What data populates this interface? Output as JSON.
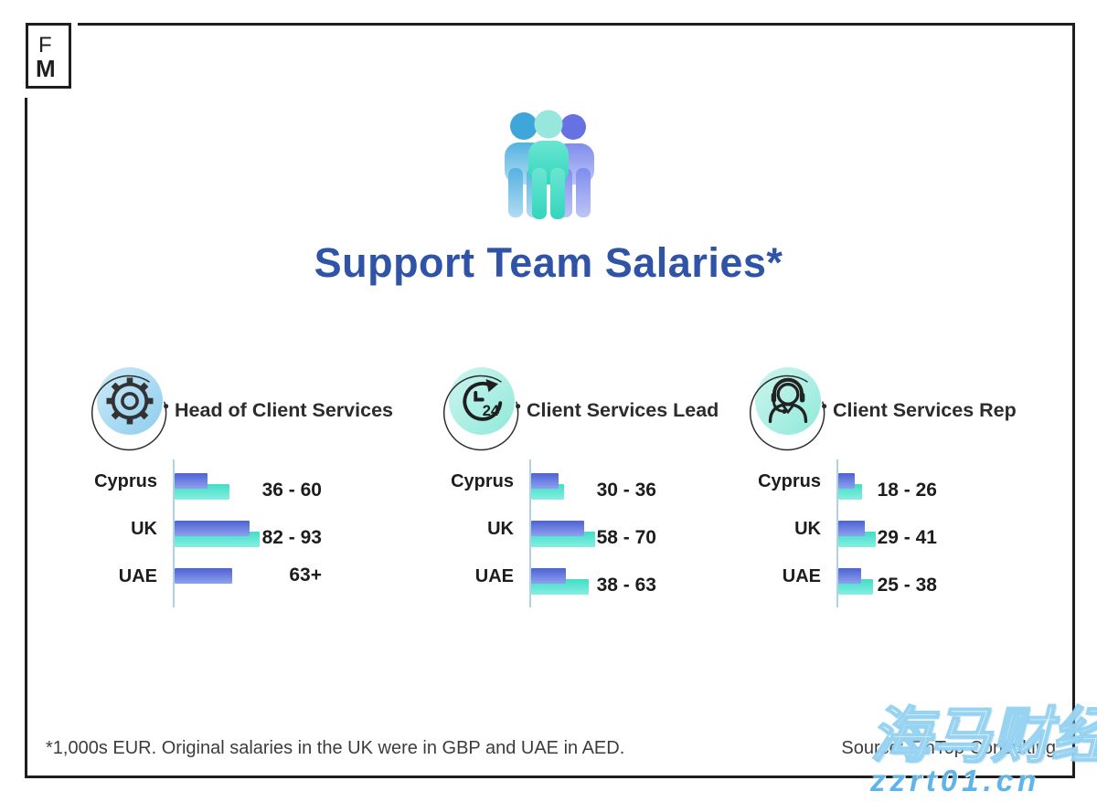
{
  "logo": {
    "letter_top": "F",
    "letter_bottom": "M"
  },
  "header": {
    "title": "Support Team Salaries*"
  },
  "columns": [
    {
      "heading": "Head of Client Services",
      "icon": "gear",
      "rows": [
        {
          "country": "Cyprus",
          "low": 36,
          "high": 60,
          "label": "36 - 60"
        },
        {
          "country": "UK",
          "low": 82,
          "high": 93,
          "label": "82 - 93"
        },
        {
          "country": "UAE",
          "low": 63,
          "high": null,
          "label": "63+"
        }
      ]
    },
    {
      "heading": "Client Services Lead",
      "icon": "clock-24",
      "rows": [
        {
          "country": "Cyprus",
          "low": 30,
          "high": 36,
          "label": "30 - 36"
        },
        {
          "country": "UK",
          "low": 58,
          "high": 70,
          "label": "58 - 70"
        },
        {
          "country": "UAE",
          "low": 38,
          "high": 63,
          "label": "38 - 63"
        }
      ]
    },
    {
      "heading": "Client Services Rep",
      "icon": "support-agent",
      "rows": [
        {
          "country": "Cyprus",
          "low": 18,
          "high": 26,
          "label": "18 - 26"
        },
        {
          "country": "UK",
          "low": 29,
          "high": 41,
          "label": "29 - 41"
        },
        {
          "country": "UAE",
          "low": 25,
          "high": 38,
          "label": "25 - 38"
        }
      ]
    }
  ],
  "chart_data": [
    {
      "type": "bar",
      "orientation": "horizontal",
      "title": "Head of Client Services",
      "unit": "1,000s EUR",
      "categories": [
        "Cyprus",
        "UK",
        "UAE"
      ],
      "series": [
        {
          "name": "range_low",
          "values": [
            36,
            82,
            63
          ]
        },
        {
          "name": "range_high",
          "values": [
            60,
            93,
            null
          ]
        }
      ],
      "value_labels": [
        "36 - 60",
        "82 - 93",
        "63+"
      ],
      "xlim": [
        0,
        100
      ],
      "grid": false,
      "legend": false
    },
    {
      "type": "bar",
      "orientation": "horizontal",
      "title": "Client Services Lead",
      "unit": "1,000s EUR",
      "categories": [
        "Cyprus",
        "UK",
        "UAE"
      ],
      "series": [
        {
          "name": "range_low",
          "values": [
            30,
            58,
            38
          ]
        },
        {
          "name": "range_high",
          "values": [
            36,
            70,
            63
          ]
        }
      ],
      "value_labels": [
        "30 - 36",
        "58 - 70",
        "38 - 63"
      ],
      "xlim": [
        0,
        100
      ],
      "grid": false,
      "legend": false
    },
    {
      "type": "bar",
      "orientation": "horizontal",
      "title": "Client Services Rep",
      "unit": "1,000s EUR",
      "categories": [
        "Cyprus",
        "UK",
        "UAE"
      ],
      "series": [
        {
          "name": "range_low",
          "values": [
            18,
            29,
            25
          ]
        },
        {
          "name": "range_high",
          "values": [
            26,
            41,
            38
          ]
        }
      ],
      "value_labels": [
        "18 - 26",
        "29 - 41",
        "25 - 38"
      ],
      "xlim": [
        0,
        100
      ],
      "grid": false,
      "legend": false
    }
  ],
  "footer": {
    "note": "*1,000s EUR. Original salaries in the UK were in GBP and UAE in AED.",
    "source": "Source: FinTop Consulting"
  },
  "watermark": {
    "title": "海马财经",
    "url": "zzrt01.cn"
  },
  "colors": {
    "title_blue": "#2e53a7",
    "bar_low_top": "#4e62d2",
    "bar_low_bottom": "#8ea1f0",
    "bar_high_top": "#42ddc7",
    "bar_high_bottom": "#85efe1",
    "axis": "#aed3e7",
    "icon_circle_blue": "#8ecded",
    "icon_circle_mint": "#8fe9da",
    "watermark_blue": "#5fb5e9",
    "border": "#1e1e1e"
  }
}
